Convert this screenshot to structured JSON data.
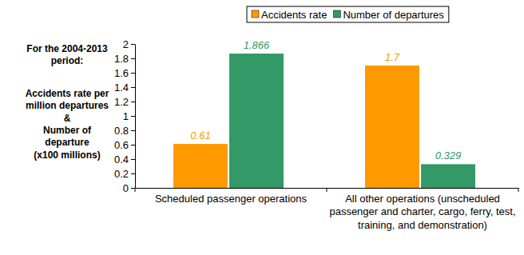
{
  "chart_data": {
    "type": "bar",
    "annotation": [
      "For the 2004-2013",
      "period:"
    ],
    "ylabel": [
      "Accidents rate per",
      "million departures",
      "&",
      "Number of",
      "departure",
      "(x100 millions)"
    ],
    "categories": [
      "Scheduled passenger operations",
      "All other operations (unscheduled passenger and charter, cargo, ferry, test, training, and demonstration)"
    ],
    "series": [
      {
        "name": "Accidents rate",
        "color": "#ff9900",
        "values": [
          0.61,
          1.7
        ]
      },
      {
        "name": "Number of departures",
        "color": "#339966",
        "values": [
          1.866,
          0.329
        ]
      }
    ],
    "ylim": [
      0,
      2
    ],
    "yticks": [
      0,
      0.2,
      0.4,
      0.6,
      0.8,
      1,
      1.2,
      1.4,
      1.6,
      1.8,
      2
    ],
    "legend": "top",
    "data_labels": true,
    "grid": false
  }
}
